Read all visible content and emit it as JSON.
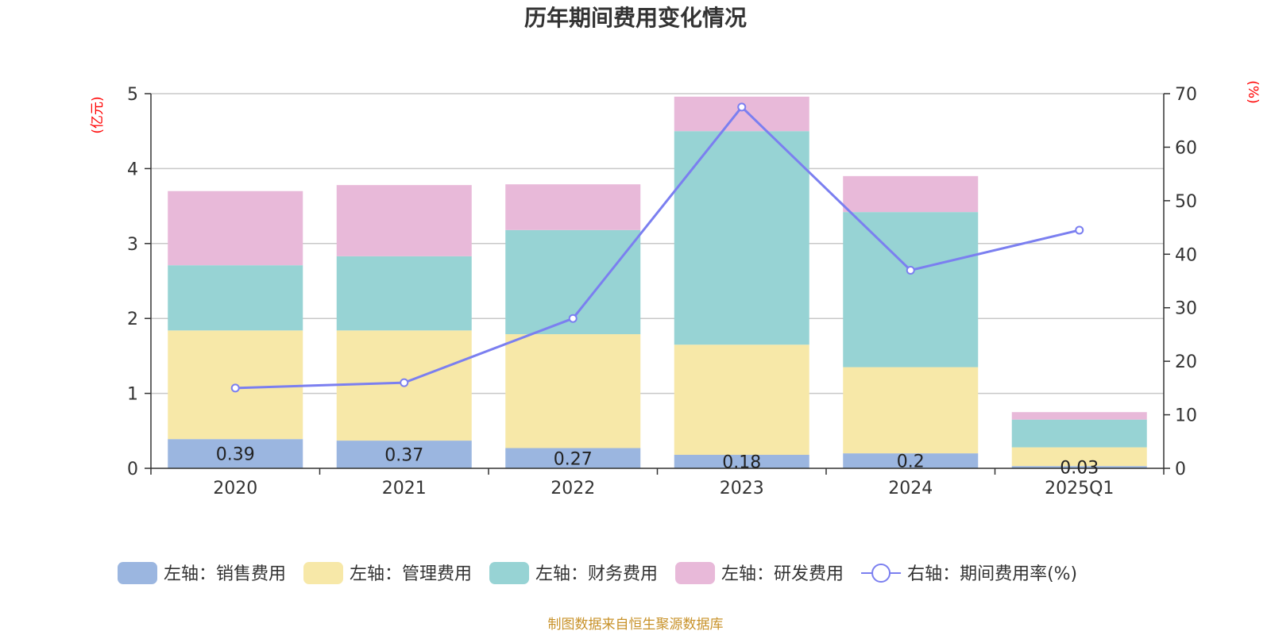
{
  "chart_data": {
    "type": "bar",
    "title": "历年期间费用变化情况",
    "categories": [
      "2020",
      "2021",
      "2022",
      "2023",
      "2024",
      "2025Q1"
    ],
    "left_axis": {
      "unit": "(亿元)",
      "ylim": [
        0,
        5
      ],
      "ticks": [
        0,
        1,
        2,
        3,
        4,
        5
      ]
    },
    "right_axis": {
      "unit": "(%)",
      "ylim": [
        0,
        70
      ],
      "ticks": [
        0,
        10,
        20,
        30,
        40,
        50,
        60,
        70
      ]
    },
    "series": [
      {
        "name": "左轴：销售费用",
        "type": "bar",
        "axis": "left",
        "color": "#9bb6e0",
        "values": [
          0.39,
          0.37,
          0.27,
          0.18,
          0.2,
          0.03
        ],
        "data_labels": [
          "0.39",
          "0.37",
          "0.27",
          "0.18",
          "0.2",
          "0.03"
        ]
      },
      {
        "name": "左轴：管理费用",
        "type": "bar",
        "axis": "left",
        "color": "#f7e8a8",
        "values": [
          1.45,
          1.47,
          1.52,
          1.47,
          1.15,
          0.25
        ]
      },
      {
        "name": "左轴：财务费用",
        "type": "bar",
        "axis": "left",
        "color": "#97d3d4",
        "values": [
          0.87,
          0.99,
          1.39,
          2.85,
          2.07,
          0.37
        ]
      },
      {
        "name": "左轴：研发费用",
        "type": "bar",
        "axis": "left",
        "color": "#e8b9d9",
        "values": [
          0.99,
          0.95,
          0.61,
          0.46,
          0.48,
          0.1
        ]
      },
      {
        "name": "右轴：期间费用率(%)",
        "type": "line",
        "axis": "right",
        "color": "#7b7ff0",
        "values": [
          15.0,
          16.0,
          28.0,
          67.5,
          37.0,
          44.5
        ]
      }
    ],
    "legend_position": "bottom",
    "grid": true
  },
  "footer": {
    "source": "制图数据来自恒生聚源数据库"
  }
}
